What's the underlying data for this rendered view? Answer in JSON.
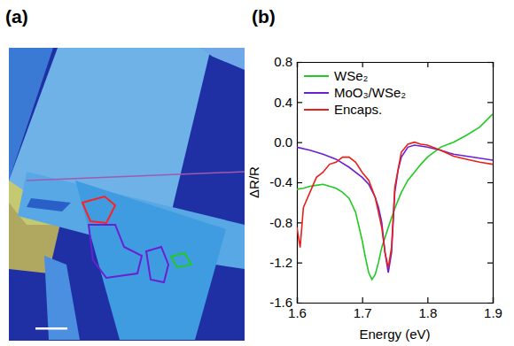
{
  "panel_labels": [
    "(a)",
    "(b)"
  ],
  "chart_data": {
    "type": "line",
    "x_label": "Energy (eV)",
    "y_label": "ΔR/R",
    "xlim": [
      1.6,
      1.9
    ],
    "xticks": [
      1.6,
      1.7,
      1.8,
      1.9
    ],
    "ylim": [
      -1.6,
      0.8
    ],
    "yticks": [
      -1.6,
      -1.2,
      -0.8,
      -0.4,
      {
        "value": 0,
        "label": "0.0"
      },
      0.4,
      0.8
    ],
    "legend": "top-left",
    "series": [
      {
        "name": "WSe₂",
        "color": "#22c922",
        "x": [
          1.6,
          1.61,
          1.62,
          1.63,
          1.64,
          1.65,
          1.66,
          1.67,
          1.68,
          1.69,
          1.7,
          1.705,
          1.71,
          1.715,
          1.72,
          1.725,
          1.73,
          1.74,
          1.75,
          1.76,
          1.77,
          1.78,
          1.79,
          1.8,
          1.82,
          1.84,
          1.86,
          1.88,
          1.9
        ],
        "values": [
          -0.47,
          -0.46,
          -0.44,
          -0.43,
          -0.42,
          -0.44,
          -0.46,
          -0.5,
          -0.56,
          -0.7,
          -0.98,
          -1.15,
          -1.3,
          -1.37,
          -1.32,
          -1.2,
          -1.05,
          -0.85,
          -0.66,
          -0.5,
          -0.38,
          -0.3,
          -0.22,
          -0.15,
          -0.05,
          0.0,
          0.07,
          0.15,
          0.28
        ]
      },
      {
        "name": "MoO₃/WSe₂",
        "color": "#6a20d2",
        "x": [
          1.6,
          1.62,
          1.64,
          1.66,
          1.68,
          1.7,
          1.71,
          1.72,
          1.725,
          1.73,
          1.735,
          1.74,
          1.745,
          1.75,
          1.755,
          1.76,
          1.77,
          1.78,
          1.8,
          1.82,
          1.84,
          1.86,
          1.88,
          1.9
        ],
        "values": [
          -0.05,
          -0.08,
          -0.12,
          -0.17,
          -0.25,
          -0.35,
          -0.42,
          -0.55,
          -0.65,
          -0.8,
          -1.1,
          -1.3,
          -1.1,
          -0.5,
          -0.28,
          -0.15,
          -0.05,
          -0.03,
          -0.05,
          -0.08,
          -0.12,
          -0.14,
          -0.16,
          -0.18
        ]
      },
      {
        "name": "Encaps.",
        "color": "#e8201c",
        "x": [
          1.6,
          1.605,
          1.61,
          1.62,
          1.63,
          1.64,
          1.65,
          1.66,
          1.67,
          1.68,
          1.69,
          1.7,
          1.71,
          1.72,
          1.73,
          1.735,
          1.74,
          1.745,
          1.75,
          1.76,
          1.77,
          1.78,
          1.79,
          1.8,
          1.82,
          1.84,
          1.86,
          1.88,
          1.9
        ],
        "values": [
          -0.85,
          -1.05,
          -0.65,
          -0.5,
          -0.35,
          -0.3,
          -0.22,
          -0.2,
          -0.15,
          -0.15,
          -0.2,
          -0.3,
          -0.38,
          -0.55,
          -0.85,
          -1.1,
          -1.25,
          -1.05,
          -0.45,
          -0.1,
          -0.02,
          0.0,
          -0.02,
          -0.03,
          -0.08,
          -0.14,
          -0.17,
          -0.2,
          -0.22
        ]
      }
    ]
  }
}
